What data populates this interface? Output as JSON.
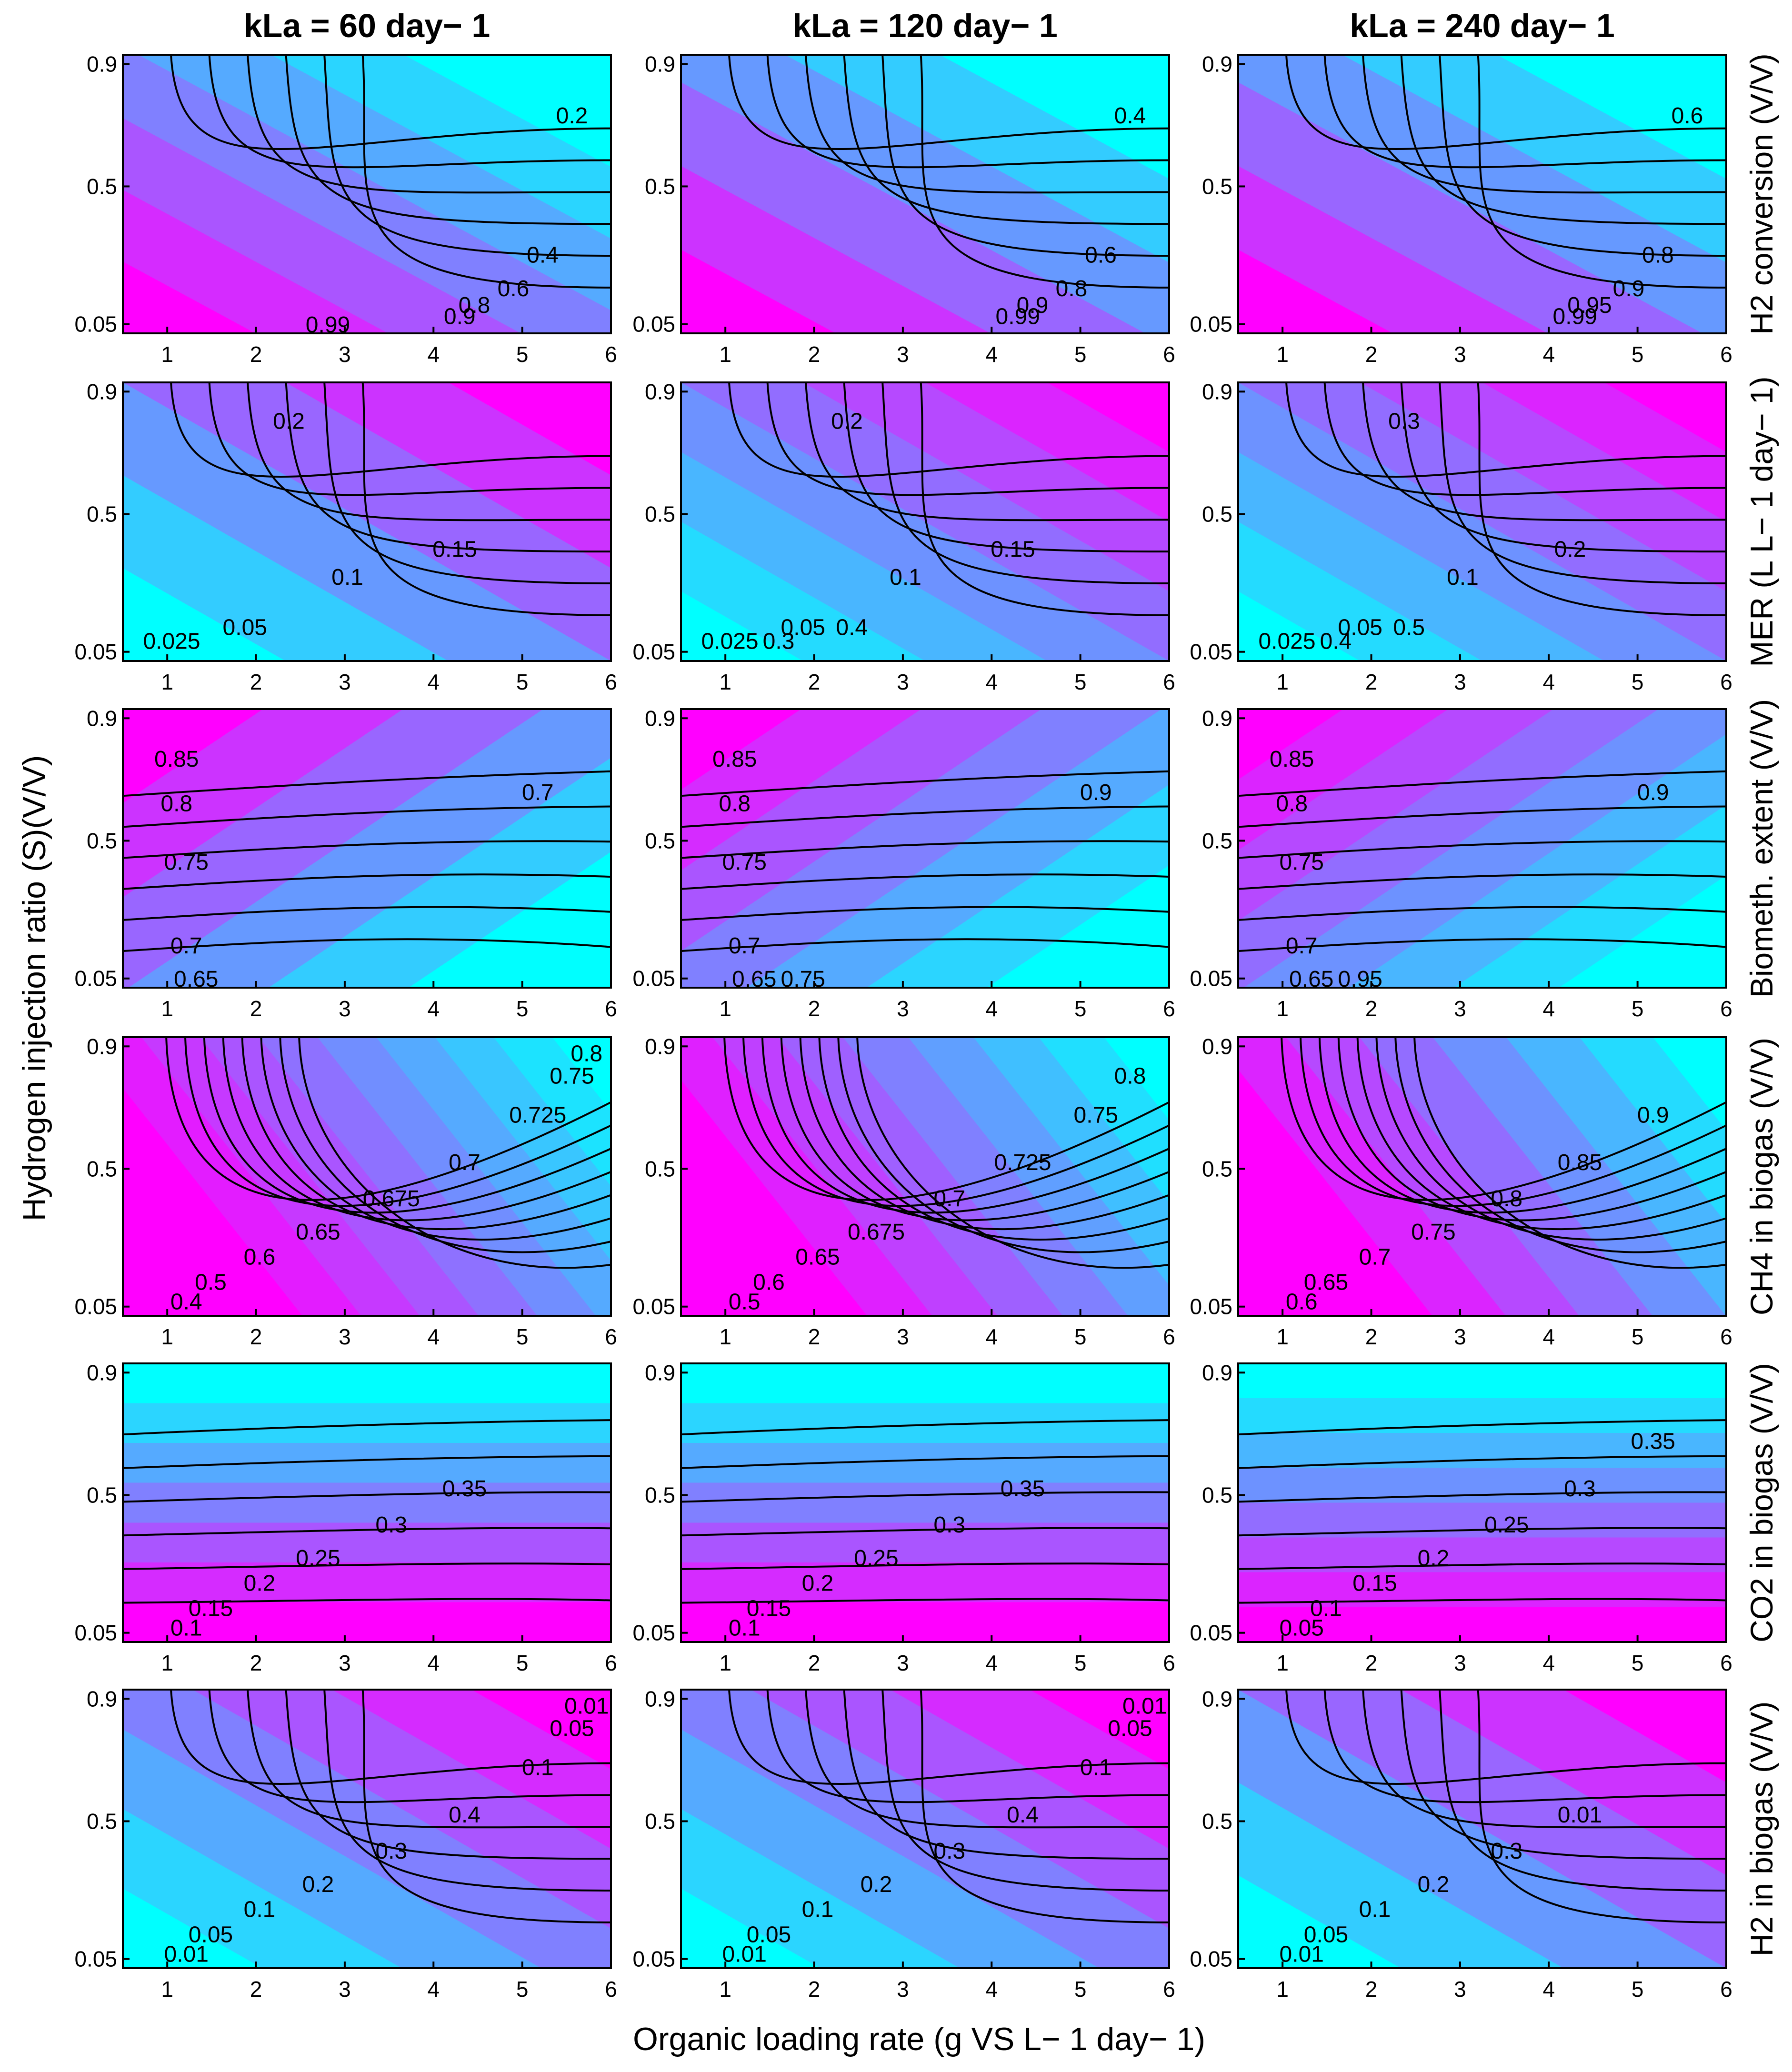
{
  "figure": {
    "xlabel": "Organic loading rate (g VS L− 1 day− 1)",
    "ylabel": "Hydrogen injection ratio (S)(V/V)"
  },
  "columns": [
    "kLa = 60 day− 1",
    "kLa = 120 day− 1",
    "kLa = 240 day− 1"
  ],
  "rows": [
    "H2 conversion (V/V)",
    "MER (L L− 1 day− 1)",
    "Biometh. extent (V/V)",
    "CH4 in biogas (V/V)",
    "CO2 in biogas (V/V)",
    "H2 in biogas (V/V)"
  ],
  "axes": {
    "xlim": [
      0.5,
      6
    ],
    "ylim": [
      0.02,
      0.93
    ],
    "xticks": [
      1,
      2,
      3,
      4,
      5,
      6
    ],
    "yticks": [
      0.05,
      0.5,
      0.9
    ],
    "yticklabels": [
      "0.05",
      "0.5",
      "0.9"
    ]
  },
  "colors": {
    "low": "#00ffff",
    "high": "#ff00ff",
    "contour_line": "#000000",
    "frame": "#000000"
  },
  "chart_data": [
    {
      "type": "heatmap",
      "row": "H2 conversion (V/V)",
      "column": "kLa = 60 day− 1",
      "levels": [
        0.2,
        0.4,
        0.6,
        0.8,
        0.9,
        0.99
      ],
      "contour_labels": [
        "0.2",
        "0.4",
        "0.6",
        "0.8",
        "0.9",
        "0.99"
      ]
    },
    {
      "type": "heatmap",
      "row": "H2 conversion (V/V)",
      "column": "kLa = 120 day− 1",
      "levels": [
        0.4,
        0.6,
        0.8,
        0.9,
        0.99
      ],
      "contour_labels": [
        "0.4",
        "0.6",
        "0.8",
        "0.9",
        "0.99"
      ]
    },
    {
      "type": "heatmap",
      "row": "H2 conversion (V/V)",
      "column": "kLa = 240 day− 1",
      "levels": [
        0.6,
        0.8,
        0.9,
        0.95,
        0.99
      ],
      "contour_labels": [
        "0.6",
        "0.8",
        "0.9",
        "0.95",
        "0.99"
      ]
    },
    {
      "type": "heatmap",
      "row": "MER (L L− 1 day− 1)",
      "column": "kLa = 60 day− 1",
      "levels": [
        0.025,
        0.05,
        0.1,
        0.15,
        0.2
      ],
      "contour_labels": [
        "0.025",
        "0.05",
        "0.1",
        "0.15",
        "0.2"
      ]
    },
    {
      "type": "heatmap",
      "row": "MER (L L− 1 day− 1)",
      "column": "kLa = 120 day− 1",
      "levels": [
        0.025,
        0.05,
        0.1,
        0.15,
        0.2,
        0.3,
        0.4
      ],
      "contour_labels": [
        "0.025",
        "0.05",
        "0.1",
        "0.15",
        "0.2",
        "0.3",
        "0.4"
      ]
    },
    {
      "type": "heatmap",
      "row": "MER (L L− 1 day− 1)",
      "column": "kLa = 240 day− 1",
      "levels": [
        0.025,
        0.05,
        0.1,
        0.2,
        0.3,
        0.4,
        0.5
      ],
      "contour_labels": [
        "0.025",
        "0.05",
        "0.1",
        "0.2",
        "0.3",
        "0.4",
        "0.5"
      ]
    },
    {
      "type": "heatmap",
      "row": "Biometh. extent (V/V)",
      "column": "kLa = 60 day− 1",
      "levels": [
        0.65,
        0.7,
        0.75,
        0.8,
        0.85
      ],
      "contour_labels": [
        "0.65",
        "0.7",
        "0.75",
        "0.8",
        "0.85",
        "0.7"
      ]
    },
    {
      "type": "heatmap",
      "row": "Biometh. extent (V/V)",
      "column": "kLa = 120 day− 1",
      "levels": [
        0.65,
        0.7,
        0.75,
        0.8,
        0.85,
        0.9
      ],
      "contour_labels": [
        "0.65",
        "0.7",
        "0.75",
        "0.8",
        "0.85",
        "0.9",
        "0.75"
      ]
    },
    {
      "type": "heatmap",
      "row": "Biometh. extent (V/V)",
      "column": "kLa = 240 day− 1",
      "levels": [
        0.65,
        0.7,
        0.75,
        0.8,
        0.85,
        0.9,
        0.95
      ],
      "contour_labels": [
        "0.65",
        "0.7",
        "0.75",
        "0.8",
        "0.85",
        "0.9",
        "0.95"
      ]
    },
    {
      "type": "heatmap",
      "row": "CH4 in biogas (V/V)",
      "column": "kLa = 60 day− 1",
      "levels": [
        0.4,
        0.5,
        0.6,
        0.65,
        0.675,
        0.7,
        0.725,
        0.75,
        0.8
      ],
      "contour_labels": [
        "0.4",
        "0.5",
        "0.6",
        "0.65",
        "0.675",
        "0.7",
        "0.725",
        "0.75",
        "0.8"
      ]
    },
    {
      "type": "heatmap",
      "row": "CH4 in biogas (V/V)",
      "column": "kLa = 120 day− 1",
      "levels": [
        0.5,
        0.6,
        0.65,
        0.675,
        0.7,
        0.725,
        0.75,
        0.8
      ],
      "contour_labels": [
        "0.5",
        "0.6",
        "0.65",
        "0.675",
        "0.7",
        "0.725",
        "0.75",
        "0.8"
      ]
    },
    {
      "type": "heatmap",
      "row": "CH4 in biogas (V/V)",
      "column": "kLa = 240 day− 1",
      "levels": [
        0.6,
        0.65,
        0.7,
        0.75,
        0.8,
        0.85,
        0.9
      ],
      "contour_labels": [
        "0.6",
        "0.65",
        "0.7",
        "0.75",
        "0.8",
        "0.85",
        "0.9"
      ]
    },
    {
      "type": "heatmap",
      "row": "CO2 in biogas (V/V)",
      "column": "kLa = 60 day− 1",
      "levels": [
        0.1,
        0.15,
        0.2,
        0.25,
        0.3,
        0.35
      ],
      "contour_labels": [
        "0.1",
        "0.15",
        "0.2",
        "0.25",
        "0.3",
        "0.35"
      ]
    },
    {
      "type": "heatmap",
      "row": "CO2 in biogas (V/V)",
      "column": "kLa = 120 day− 1",
      "levels": [
        0.1,
        0.15,
        0.2,
        0.25,
        0.3,
        0.35
      ],
      "contour_labels": [
        "0.1",
        "0.15",
        "0.2",
        "0.25",
        "0.3",
        "0.35"
      ]
    },
    {
      "type": "heatmap",
      "row": "CO2 in biogas (V/V)",
      "column": "kLa = 240 day− 1",
      "levels": [
        0.05,
        0.1,
        0.15,
        0.2,
        0.25,
        0.3,
        0.35
      ],
      "contour_labels": [
        "0.05",
        "0.1",
        "0.15",
        "0.2",
        "0.25",
        "0.3",
        "0.35"
      ]
    },
    {
      "type": "heatmap",
      "row": "H2 in biogas (V/V)",
      "column": "kLa = 60 day− 1",
      "levels": [
        0.01,
        0.05,
        0.1,
        0.2,
        0.3,
        0.4
      ],
      "contour_labels": [
        "0.01",
        "0.05",
        "0.1",
        "0.2",
        "0.3",
        "0.4",
        "0.1",
        "0.05",
        "0.01"
      ]
    },
    {
      "type": "heatmap",
      "row": "H2 in biogas (V/V)",
      "column": "kLa = 120 day− 1",
      "levels": [
        0.01,
        0.05,
        0.1,
        0.2,
        0.3,
        0.4
      ],
      "contour_labels": [
        "0.01",
        "0.05",
        "0.1",
        "0.2",
        "0.3",
        "0.4",
        "0.1",
        "0.05",
        "0.01"
      ]
    },
    {
      "type": "heatmap",
      "row": "H2 in biogas (V/V)",
      "column": "kLa = 240 day− 1",
      "levels": [
        0.01,
        0.05,
        0.1,
        0.2,
        0.3
      ],
      "contour_labels": [
        "0.01",
        "0.05",
        "0.1",
        "0.2",
        "0.3",
        "0.01"
      ]
    }
  ]
}
